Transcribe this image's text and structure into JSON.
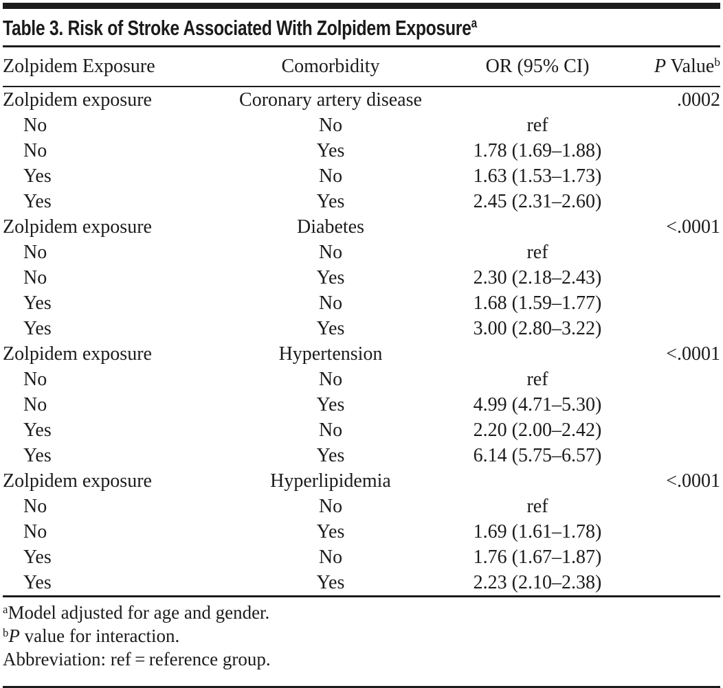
{
  "table": {
    "title": "Table 3. Risk of Stroke Associated With Zolpidem Exposure",
    "title_sup": "a",
    "header": {
      "col1": "Zolpidem Exposure",
      "col2": "Comorbidity",
      "col3": "OR (95% CI)",
      "p_italic": "P",
      "p_rest": " Value",
      "p_sup": "b"
    },
    "groups": [
      {
        "exposure_label": "Zolpidem exposure",
        "comorbidity": "Coronary artery disease",
        "p_value": ".0002",
        "rows": [
          {
            "exposure": "No",
            "comorbidity": "No",
            "or_ci": "ref"
          },
          {
            "exposure": "No",
            "comorbidity": "Yes",
            "or_ci": "1.78 (1.69–1.88)"
          },
          {
            "exposure": "Yes",
            "comorbidity": "No",
            "or_ci": "1.63 (1.53–1.73)"
          },
          {
            "exposure": "Yes",
            "comorbidity": "Yes",
            "or_ci": "2.45 (2.31–2.60)"
          }
        ]
      },
      {
        "exposure_label": "Zolpidem exposure",
        "comorbidity": "Diabetes",
        "p_value": "<.0001",
        "rows": [
          {
            "exposure": "No",
            "comorbidity": "No",
            "or_ci": "ref"
          },
          {
            "exposure": "No",
            "comorbidity": "Yes",
            "or_ci": "2.30 (2.18–2.43)"
          },
          {
            "exposure": "Yes",
            "comorbidity": "No",
            "or_ci": "1.68 (1.59–1.77)"
          },
          {
            "exposure": "Yes",
            "comorbidity": "Yes",
            "or_ci": "3.00 (2.80–3.22)"
          }
        ]
      },
      {
        "exposure_label": "Zolpidem exposure",
        "comorbidity": "Hypertension",
        "p_value": "<.0001",
        "rows": [
          {
            "exposure": "No",
            "comorbidity": "No",
            "or_ci": "ref"
          },
          {
            "exposure": "No",
            "comorbidity": "Yes",
            "or_ci": "4.99 (4.71–5.30)"
          },
          {
            "exposure": "Yes",
            "comorbidity": "No",
            "or_ci": "2.20 (2.00–2.42)"
          },
          {
            "exposure": "Yes",
            "comorbidity": "Yes",
            "or_ci": "6.14 (5.75–6.57)"
          }
        ]
      },
      {
        "exposure_label": "Zolpidem exposure",
        "comorbidity": "Hyperlipidemia",
        "p_value": "<.0001",
        "rows": [
          {
            "exposure": "No",
            "comorbidity": "No",
            "or_ci": "ref"
          },
          {
            "exposure": "No",
            "comorbidity": "Yes",
            "or_ci": "1.69 (1.61–1.78)"
          },
          {
            "exposure": "Yes",
            "comorbidity": "No",
            "or_ci": "1.76 (1.67–1.87)"
          },
          {
            "exposure": "Yes",
            "comorbidity": "Yes",
            "or_ci": "2.23 (2.10–2.38)"
          }
        ]
      }
    ],
    "footnotes": [
      {
        "marker": "a",
        "italic": "",
        "text": "Model adjusted for age and gender."
      },
      {
        "marker": "b",
        "italic": "P",
        "text": " value for interaction."
      },
      {
        "marker": "",
        "italic": "",
        "text": "Abbreviation: ref = reference group."
      }
    ]
  }
}
